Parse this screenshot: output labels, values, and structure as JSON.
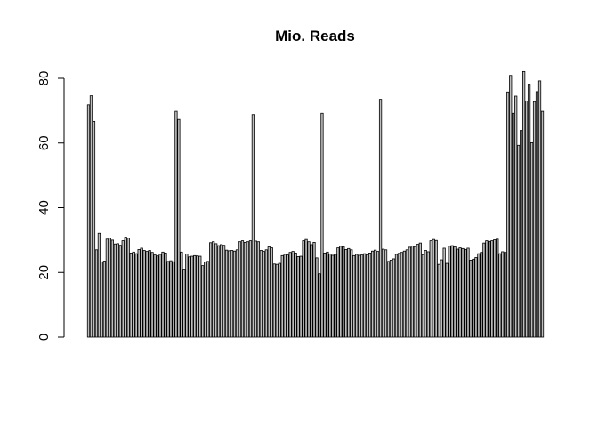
{
  "chart_data": {
    "type": "bar",
    "title": "Mio. Reads",
    "xlabel": "",
    "ylabel": "",
    "ylim": [
      0,
      80
    ],
    "yticks": [
      0,
      20,
      40,
      60,
      80
    ],
    "yticks_labels": [
      "0",
      "20",
      "40",
      "60",
      "80"
    ],
    "grid": false,
    "bar_fill": "#bebebe",
    "bar_stroke": "#000000",
    "values": [
      71.8,
      74.6,
      66.7,
      27.0,
      32.1,
      23.2,
      23.5,
      30.3,
      30.6,
      30.0,
      28.8,
      28.9,
      28.4,
      29.8,
      30.9,
      30.6,
      26.0,
      26.3,
      25.8,
      27.1,
      27.5,
      26.8,
      26.5,
      26.8,
      26.2,
      25.4,
      25.1,
      25.6,
      26.3,
      26.0,
      23.4,
      23.6,
      23.3,
      69.8,
      67.3,
      26.3,
      21.0,
      25.7,
      24.8,
      25.0,
      25.2,
      25.1,
      25.0,
      22.1,
      23.2,
      23.4,
      29.2,
      29.5,
      28.9,
      28.3,
      28.6,
      28.4,
      26.9,
      26.7,
      26.8,
      26.6,
      27.0,
      29.5,
      29.8,
      29.3,
      29.5,
      29.8,
      68.8,
      29.7,
      29.5,
      26.8,
      26.5,
      27.0,
      27.9,
      27.6,
      22.6,
      22.5,
      22.8,
      25.2,
      25.6,
      25.4,
      26.2,
      26.5,
      26.0,
      24.9,
      25.0,
      29.8,
      30.2,
      29.5,
      28.6,
      29.3,
      24.5,
      19.6,
      69.2,
      26.0,
      26.3,
      25.7,
      25.3,
      25.6,
      27.6,
      28.1,
      27.9,
      27.1,
      27.4,
      27.0,
      25.2,
      25.6,
      25.3,
      25.4,
      25.8,
      25.5,
      26.0,
      26.6,
      26.9,
      26.5,
      73.5,
      27.2,
      27.0,
      23.4,
      23.8,
      24.2,
      25.6,
      25.9,
      26.2,
      26.6,
      27.0,
      27.8,
      28.2,
      28.0,
      28.7,
      29.1,
      25.5,
      26.8,
      26.4,
      29.8,
      30.2,
      29.9,
      22.5,
      23.9,
      27.5,
      22.8,
      28.1,
      28.3,
      27.9,
      27.2,
      27.6,
      27.4,
      27.1,
      27.5,
      23.8,
      24.1,
      24.6,
      25.8,
      26.2,
      29.1,
      29.8,
      29.6,
      29.8,
      30.1,
      30.3,
      25.8,
      26.4,
      26.2,
      75.8,
      80.9,
      69.2,
      74.5,
      59.3,
      63.9,
      82.1,
      73.0,
      78.2,
      60.1,
      72.8,
      75.9,
      79.2,
      69.8
    ]
  }
}
